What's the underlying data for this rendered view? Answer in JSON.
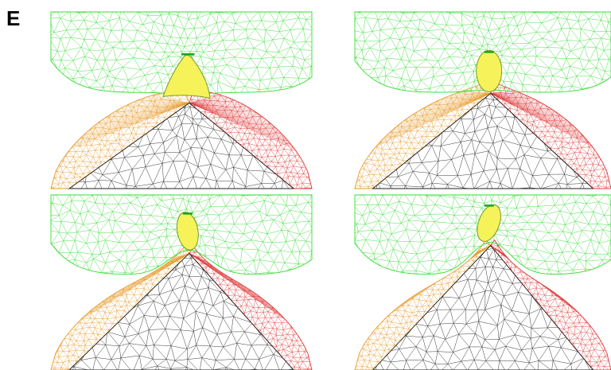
{
  "panel_label": "E",
  "colors": {
    "upper_mesh": "#33dd33",
    "left_mesh": "#e89a2a",
    "right_mesh": "#e03a3a",
    "center_mesh": "#222222",
    "interface_outline": "#7a9a2a",
    "inclusion_fill": "#f5f25a"
  },
  "panels": [
    {
      "id": "top-left",
      "inclusion": "triangular-cap"
    },
    {
      "id": "top-right",
      "inclusion": "ovoid"
    },
    {
      "id": "bottom-left",
      "inclusion": "ovoid-tilted"
    },
    {
      "id": "bottom-right",
      "inclusion": "ovoid-deformed"
    }
  ]
}
